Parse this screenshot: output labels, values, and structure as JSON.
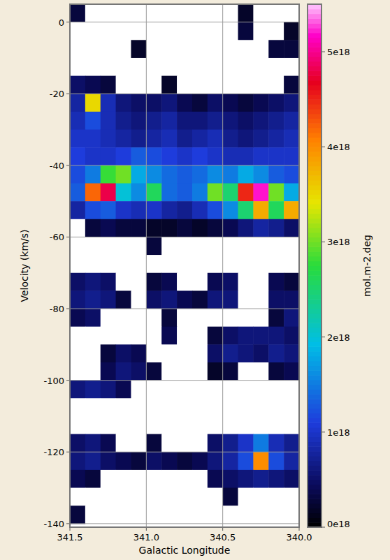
{
  "chart_data": {
    "type": "heatmap",
    "x_label": "Galactic Longitude",
    "y_label": "Velocity (km/s)",
    "xlim": [
      341.5,
      340.0
    ],
    "ylim": [
      5,
      -141
    ],
    "xticks": [
      {
        "value": 341.5,
        "label": "341.5"
      },
      {
        "value": 341.0,
        "label": "341.0"
      },
      {
        "value": 340.5,
        "label": "340.5"
      },
      {
        "value": 340.0,
        "label": "340.0"
      }
    ],
    "yticks": [
      0,
      -20,
      -40,
      -60,
      -80,
      -100,
      -120,
      -140
    ],
    "grid": true,
    "x": [
      341.45,
      341.35,
      341.25,
      341.15,
      341.05,
      340.95,
      340.85,
      340.75,
      340.65,
      340.55,
      340.45,
      340.35,
      340.25,
      340.15,
      340.05
    ],
    "y": [
      2.5,
      -2.5,
      -7.5,
      -12.5,
      -17.5,
      -22.5,
      -27.5,
      -32.5,
      -37.5,
      -42.5,
      -47.5,
      -52.5,
      -57.5,
      -62.5,
      -67.5,
      -72.5,
      -77.5,
      -82.5,
      -87.5,
      -92.5,
      -97.5,
      -102.5,
      -107.5,
      -112.5,
      -117.5,
      -122.5,
      -127.5,
      -132.5,
      -137.5
    ],
    "z": [
      [
        3e+17,
        0,
        0,
        0,
        0,
        0,
        0,
        0,
        0,
        0,
        0,
        2e+17,
        0,
        0,
        0
      ],
      [
        0,
        0,
        0,
        0,
        0,
        0,
        0,
        0,
        0,
        0,
        0,
        3e+17,
        0,
        0,
        2e+17
      ],
      [
        0,
        0,
        0,
        0,
        2e+17,
        0,
        0,
        0,
        0,
        0,
        0,
        0,
        0,
        3e+17,
        3e+17
      ],
      [
        0,
        0,
        0,
        0,
        0,
        0,
        0,
        0,
        0,
        0,
        0,
        0,
        0,
        0,
        0
      ],
      [
        5e+17,
        4e+17,
        3e+17,
        0,
        0,
        0,
        2e+17,
        0,
        0,
        0,
        0,
        0,
        0,
        0,
        3e+17
      ],
      [
        8e+17,
        3.5e+18,
        9e+17,
        6e+17,
        5e+17,
        5e+17,
        6e+17,
        4e+17,
        3e+17,
        5e+17,
        4e+17,
        3e+17,
        4e+17,
        5e+17,
        6e+17
      ],
      [
        9e+17,
        1.2e+18,
        9e+17,
        7e+17,
        6e+17,
        7e+17,
        8e+17,
        6e+17,
        6e+17,
        7e+17,
        6e+17,
        5e+17,
        6e+17,
        7e+17,
        8e+17
      ],
      [
        1e+18,
        1e+18,
        9e+17,
        8e+17,
        7e+17,
        8e+17,
        9e+17,
        7e+17,
        8e+17,
        9e+17,
        7e+17,
        6e+17,
        7e+17,
        8e+17,
        9e+17
      ],
      [
        1.1e+18,
        1e+18,
        1e+18,
        1.1e+18,
        1.3e+18,
        1.2e+18,
        1.1e+18,
        1e+18,
        1.1e+18,
        1e+18,
        9e+17,
        9e+17,
        1e+18,
        1e+18,
        1e+18
      ],
      [
        1.2e+18,
        1.5e+18,
        2.8e+18,
        3e+18,
        1.8e+18,
        1.6e+18,
        1.4e+18,
        1.3e+18,
        1.4e+18,
        1.6e+18,
        1.5e+18,
        1.8e+18,
        1.6e+18,
        1.3e+18,
        1.2e+18
      ],
      [
        1.3e+18,
        4.2e+18,
        4.8e+18,
        2e+18,
        1.6e+18,
        2.6e+18,
        1.4e+18,
        1.3e+18,
        1.5e+18,
        3e+18,
        2.5e+18,
        4.5e+18,
        5.2e+18,
        3e+18,
        1.8e+18
      ],
      [
        8e+17,
        1.2e+18,
        1.3e+18,
        1e+18,
        9e+17,
        1e+18,
        8e+17,
        7e+17,
        9e+17,
        1.2e+18,
        1.6e+18,
        2.5e+18,
        3.8e+18,
        2.6e+18,
        3.8e+18
      ],
      [
        0,
        3e+17,
        4e+17,
        3e+17,
        3e+17,
        2e+17,
        2e+17,
        3e+17,
        2e+17,
        3e+17,
        4e+17,
        6e+17,
        8e+17,
        7e+17,
        5e+17
      ],
      [
        0,
        0,
        0,
        0,
        0,
        3e+17,
        0,
        0,
        0,
        0,
        0,
        0,
        0,
        0,
        0
      ],
      [
        0,
        0,
        0,
        0,
        0,
        0,
        0,
        0,
        0,
        0,
        0,
        0,
        0,
        0,
        0
      ],
      [
        5e+17,
        6e+17,
        5e+17,
        0,
        0,
        3e+17,
        4e+17,
        0,
        0,
        4e+17,
        5e+17,
        0,
        0,
        4e+17,
        3e+17
      ],
      [
        6e+17,
        7e+17,
        6e+17,
        3e+17,
        0,
        5e+17,
        6e+17,
        4e+17,
        3e+17,
        6e+17,
        6e+17,
        0,
        0,
        5e+17,
        5e+17
      ],
      [
        4e+17,
        5e+17,
        0,
        0,
        0,
        0,
        3e+17,
        0,
        0,
        0,
        0,
        0,
        0,
        3e+17,
        6e+17
      ],
      [
        0,
        0,
        0,
        0,
        0,
        0,
        4e+17,
        0,
        0,
        3e+17,
        5e+17,
        6e+17,
        6e+17,
        6e+17,
        5e+17
      ],
      [
        0,
        0,
        3e+17,
        5e+17,
        4e+17,
        0,
        0,
        0,
        0,
        5e+17,
        7e+17,
        6e+17,
        5e+17,
        7e+17,
        6e+17
      ],
      [
        0,
        0,
        4e+17,
        6e+17,
        5e+17,
        3e+17,
        0,
        0,
        0,
        2e+17,
        3e+17,
        0,
        0,
        3e+17,
        4e+17
      ],
      [
        6e+17,
        7e+17,
        6e+17,
        4e+17,
        0,
        0,
        0,
        0,
        0,
        0,
        0,
        0,
        0,
        0,
        0
      ],
      [
        0,
        0,
        0,
        0,
        0,
        0,
        0,
        0,
        0,
        0,
        0,
        0,
        0,
        0,
        0
      ],
      [
        0,
        0,
        0,
        0,
        0,
        0,
        0,
        0,
        0,
        0,
        0,
        0,
        0,
        0,
        0
      ],
      [
        5e+17,
        6e+17,
        4e+17,
        0,
        0,
        3e+17,
        0,
        0,
        0,
        5e+17,
        7e+17,
        1e+18,
        1.5e+18,
        9e+17,
        7e+17
      ],
      [
        6e+17,
        7e+17,
        5e+17,
        4e+17,
        3e+17,
        5e+17,
        4e+17,
        3e+17,
        4e+17,
        6e+17,
        8e+17,
        1.2e+18,
        4e+18,
        1.2e+18,
        8e+17
      ],
      [
        4e+17,
        3e+17,
        0,
        0,
        0,
        0,
        0,
        0,
        0,
        4e+17,
        5e+17,
        6e+17,
        7e+17,
        6e+17,
        5e+17
      ],
      [
        0,
        0,
        0,
        0,
        0,
        0,
        0,
        0,
        0,
        0,
        3e+17,
        0,
        0,
        0,
        0
      ],
      [
        3e+17,
        0,
        0,
        0,
        0,
        0,
        0,
        0,
        0,
        0,
        0,
        0,
        0,
        0,
        0
      ]
    ],
    "colorbar": {
      "label": "mol.m-2.deg",
      "range": [
        0,
        5.5e+18
      ],
      "ticks": [
        {
          "value": 0,
          "label": "0e18"
        },
        {
          "value": 1e+18,
          "label": "1e18"
        },
        {
          "value": 2e+18,
          "label": "2e18"
        },
        {
          "value": 3e+18,
          "label": "3e18"
        },
        {
          "value": 4e+18,
          "label": "4e18"
        },
        {
          "value": 5e+18,
          "label": "5e18"
        }
      ]
    }
  }
}
